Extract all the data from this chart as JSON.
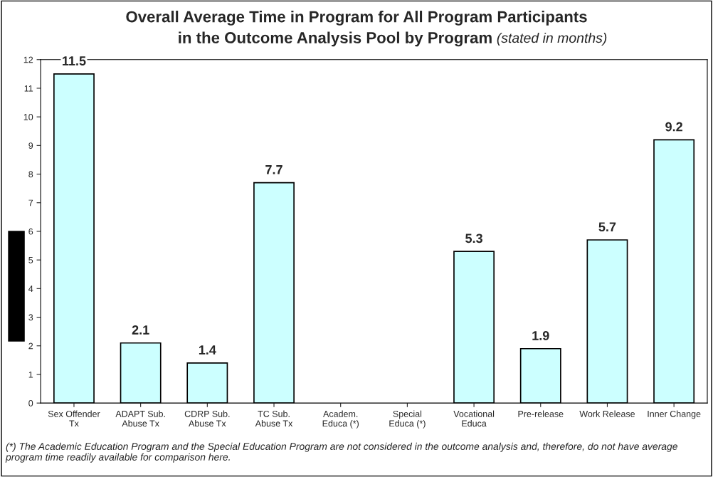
{
  "chart_data": {
    "type": "bar",
    "title": "Overall Average Time in Program for All Program Participants\nin the Outcome Analysis Pool by Program",
    "subtitle": "(stated in months)",
    "categories": [
      "Sex Offender\nTx",
      "ADAPT Sub.\nAbuse Tx",
      "CDRP Sub.\nAbuse Tx",
      "TC Sub.\nAbuse Tx",
      "Academ.\nEduca (*)",
      "Special\nEduca (*)",
      "Vocational\nEduca",
      "Pre-release",
      "Work Release",
      "Inner Change"
    ],
    "values": [
      11.5,
      2.1,
      1.4,
      7.7,
      null,
      null,
      5.3,
      1.9,
      5.7,
      9.2
    ],
    "color": "#ccffff",
    "data_labels": true,
    "ylim": [
      0,
      12
    ],
    "yticks": [
      0,
      1,
      2,
      3,
      4,
      5,
      6,
      7,
      8,
      9,
      10,
      11,
      12
    ],
    "grid": false,
    "annotations": [
      "(*) The Academic Education Program and the Special Education Program are not considered in the outcome analysis and, therefore, do not have average program time readily available for comparison here."
    ]
  }
}
